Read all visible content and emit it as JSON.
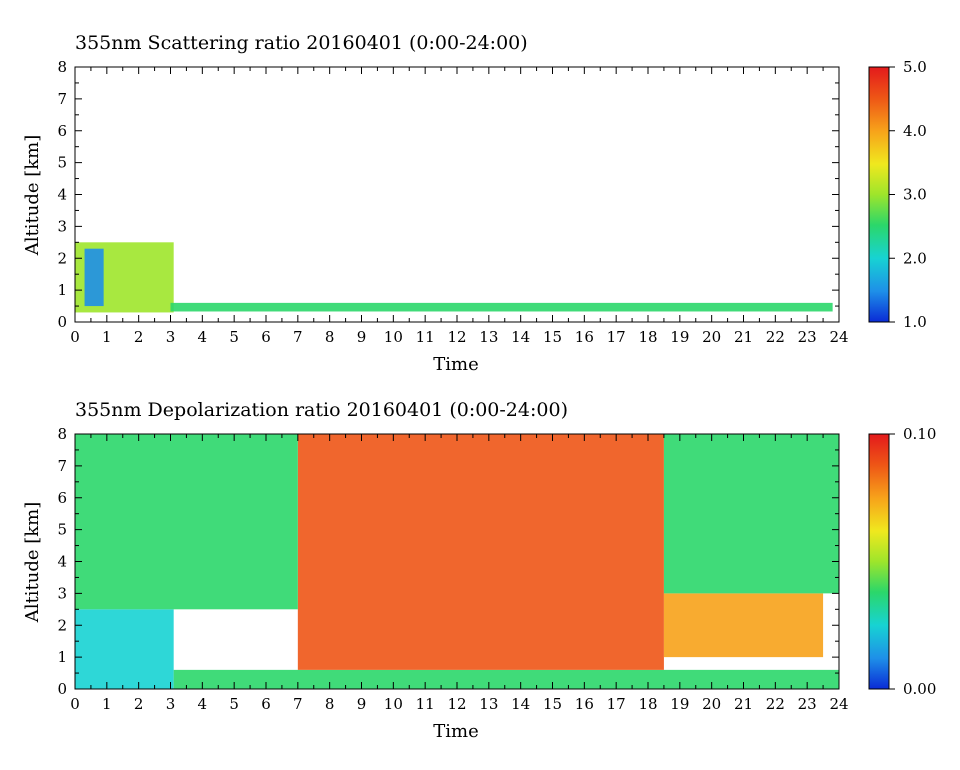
{
  "chart_data": [
    {
      "type": "heatmap",
      "title": "355nm Scattering ratio  20160401 (0:00-24:00)",
      "xlabel": "Time",
      "ylabel": "Altitude [km]",
      "xlim": [
        0,
        24
      ],
      "ylim": [
        0,
        8
      ],
      "x_ticks": [
        "0",
        "1",
        "2",
        "3",
        "4",
        "5",
        "6",
        "7",
        "8",
        "9",
        "10",
        "11",
        "12",
        "13",
        "14",
        "15",
        "16",
        "17",
        "18",
        "19",
        "20",
        "21",
        "22",
        "23",
        "24"
      ],
      "y_ticks": [
        "0",
        "1",
        "2",
        "3",
        "4",
        "5",
        "6",
        "7",
        "8"
      ],
      "colorbar": {
        "range": [
          1.0,
          5.0
        ],
        "tick_labels": [
          "1.0",
          "2.0",
          "3.0",
          "4.0",
          "5.0"
        ],
        "tick_values": [
          1.0,
          2.0,
          3.0,
          4.0,
          5.0
        ]
      },
      "colors": [
        "#0a2bd6",
        "#1e8fe8",
        "#17d3d3",
        "#2bd76a",
        "#9ee52b",
        "#f0e81e",
        "#f7a21a",
        "#ee5516",
        "#e31a1c"
      ],
      "regions": [
        {
          "x": [
            0.0,
            3.1
          ],
          "y": [
            0.3,
            2.5
          ],
          "value": 3.0
        },
        {
          "x": [
            0.3,
            0.9
          ],
          "y": [
            0.5,
            2.3
          ],
          "value": 1.3
        },
        {
          "x": [
            3.0,
            23.8
          ],
          "y": [
            0.33,
            0.6
          ],
          "value": 2.5
        }
      ]
    },
    {
      "type": "heatmap",
      "title": "355nm Depolarization ratio  20160401 (0:00-24:00)",
      "xlabel": "Time",
      "ylabel": "Altitude [km]",
      "xlim": [
        0,
        24
      ],
      "ylim": [
        0,
        8
      ],
      "x_ticks": [
        "0",
        "1",
        "2",
        "3",
        "4",
        "5",
        "6",
        "7",
        "8",
        "9",
        "10",
        "11",
        "12",
        "13",
        "14",
        "15",
        "16",
        "17",
        "18",
        "19",
        "20",
        "21",
        "22",
        "23",
        "24"
      ],
      "y_ticks": [
        "0",
        "1",
        "2",
        "3",
        "4",
        "5",
        "6",
        "7",
        "8"
      ],
      "colorbar": {
        "range": [
          0.0,
          0.1
        ],
        "tick_labels": [
          "0.00",
          "0.10"
        ],
        "tick_values": [
          0.0,
          0.1
        ]
      },
      "colors": [
        "#0a2bd6",
        "#1e8fe8",
        "#17d3d3",
        "#2bd76a",
        "#9ee52b",
        "#f0e81e",
        "#f7a21a",
        "#ee5516",
        "#e31a1c"
      ],
      "regions": [
        {
          "x": [
            0.0,
            3.1
          ],
          "y": [
            0.0,
            2.5
          ],
          "value": 0.02
        },
        {
          "x": [
            3.1,
            24.0
          ],
          "y": [
            0.0,
            0.6
          ],
          "value": 0.04
        },
        {
          "x": [
            7.0,
            18.5
          ],
          "y": [
            0.6,
            8.0
          ],
          "value": 0.085
        },
        {
          "x": [
            18.5,
            23.5
          ],
          "y": [
            1.0,
            3.0
          ],
          "value": 0.07
        },
        {
          "x": [
            0.0,
            7.0
          ],
          "y": [
            2.5,
            8.0
          ],
          "value": 0.04
        },
        {
          "x": [
            18.5,
            24.0
          ],
          "y": [
            3.0,
            8.0
          ],
          "value": 0.035
        }
      ]
    }
  ]
}
